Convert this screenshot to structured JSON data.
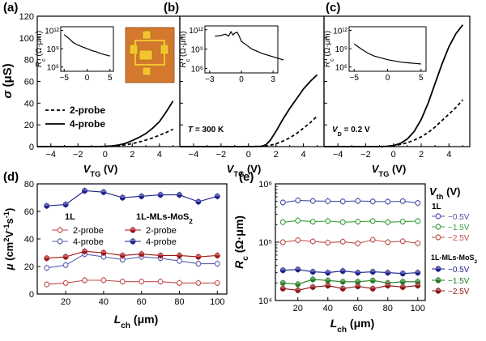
{
  "figure_labels": [
    "(a)",
    "(b)",
    "(c)",
    "(d)",
    "(e)"
  ],
  "chart_data": [
    {
      "id": "a",
      "type": "line",
      "panel_label": "(a)",
      "ylabel": "σ (μS)",
      "xlabel": "VTG (V)",
      "xlim": [
        -5,
        5.5
      ],
      "ylim": [
        0,
        120
      ],
      "xticks": [
        -4,
        -2,
        0,
        2,
        4
      ],
      "yticks": [
        0,
        20,
        40,
        60,
        80,
        100,
        120
      ],
      "legend": [
        "2-probe",
        "4-probe"
      ],
      "series": [
        {
          "name": "2-probe",
          "style": "dashed",
          "x": [
            -5,
            -4,
            -3,
            -2,
            -1,
            0,
            0.5,
            1,
            1.5,
            2,
            2.5,
            3,
            3.5,
            4,
            4.5,
            5
          ],
          "y": [
            0,
            0,
            0,
            0,
            0,
            0.1,
            0.3,
            0.8,
            1.6,
            2.8,
            4.2,
            6,
            8,
            10.5,
            13,
            16
          ]
        },
        {
          "name": "4-probe",
          "style": "solid",
          "x": [
            -5,
            -4,
            -3,
            -2,
            -1,
            0,
            0.5,
            1,
            1.5,
            2,
            2.5,
            3,
            3.5,
            4,
            4.5,
            5
          ],
          "y": [
            0,
            0,
            0,
            0,
            0,
            0.2,
            0.6,
            1.5,
            3,
            5.5,
            8.5,
            12,
            17,
            23,
            32,
            42
          ]
        }
      ],
      "inset": {
        "ylabel": "Rc (Ω·μm)",
        "ytick_labels": [
          "10^12",
          "10^9",
          "10^6"
        ],
        "xticks": [
          -5,
          0,
          5
        ],
        "x": [
          -5,
          -4,
          -3,
          -2,
          -1,
          0,
          1,
          2,
          3,
          4,
          5
        ],
        "log_y": [
          11.3,
          10.7,
          10.0,
          9.6,
          9.3,
          9.0,
          8.7,
          8.5,
          8.2,
          8.0,
          7.8
        ]
      },
      "has_device_image": true
    },
    {
      "id": "b",
      "type": "line",
      "panel_label": "(b)",
      "xlabel": "VTG (V)",
      "annotation": "T = 300 K",
      "xlim": [
        -5,
        5.5
      ],
      "ylim": [
        0,
        120
      ],
      "xticks": [
        -4,
        -2,
        0,
        2,
        4
      ],
      "series": [
        {
          "name": "2-probe",
          "style": "dashed",
          "x": [
            -5,
            -3,
            -1,
            0,
            1,
            1.5,
            2,
            2.5,
            3,
            3.5,
            4,
            4.5,
            5
          ],
          "y": [
            0,
            0,
            0,
            0,
            0.2,
            1,
            2.5,
            5,
            8,
            12,
            17,
            22,
            28
          ]
        },
        {
          "name": "4-probe",
          "style": "solid",
          "x": [
            -5,
            -3,
            -1,
            0,
            1,
            1.3,
            1.6,
            2,
            2.5,
            3,
            3.5,
            4,
            4.5,
            5
          ],
          "y": [
            0,
            0,
            0,
            0,
            0.3,
            2,
            6,
            14,
            25,
            35,
            44,
            53,
            60,
            66
          ]
        }
      ],
      "inset": {
        "ylabel": "Rc (Ω·μm)",
        "ytick_labels": [
          "10^12",
          "10^9",
          "10^6"
        ],
        "xticks": [
          -3,
          0,
          3
        ],
        "x": [
          -2.5,
          -2,
          -1.5,
          -1.2,
          -1,
          -0.8,
          -0.6,
          -0.4,
          -0.2,
          0,
          0.5,
          1,
          2,
          3,
          4
        ],
        "log_y": [
          11.0,
          11.1,
          11.3,
          11.0,
          11.7,
          11.2,
          11.5,
          11.6,
          11.0,
          10.2,
          9.6,
          9.0,
          8.3,
          7.8,
          7.3
        ]
      }
    },
    {
      "id": "c",
      "type": "line",
      "panel_label": "(c)",
      "xlabel": "VTG (V)",
      "annotation": "VD = 0.2 V",
      "xlim": [
        -5,
        5.5
      ],
      "ylim": [
        0,
        120
      ],
      "xticks": [
        -4,
        -2,
        0,
        2,
        4
      ],
      "series": [
        {
          "name": "2-probe",
          "style": "dashed",
          "x": [
            -5,
            -3,
            -1,
            -0.5,
            0,
            0.5,
            1,
            1.5,
            2,
            2.5,
            3,
            3.5,
            4,
            4.5,
            5
          ],
          "y": [
            0,
            0,
            0,
            0.2,
            0.8,
            2,
            3.5,
            6,
            9,
            13,
            18,
            24,
            30,
            36,
            43
          ]
        },
        {
          "name": "4-probe",
          "style": "solid",
          "x": [
            -5,
            -3,
            -1,
            -0.5,
            0,
            0.5,
            1,
            1.5,
            2,
            2.5,
            3,
            3.5,
            4,
            4.5,
            5
          ],
          "y": [
            0,
            0,
            0,
            0.3,
            1,
            3,
            7,
            14,
            25,
            40,
            58,
            76,
            92,
            104,
            112
          ]
        }
      ],
      "inset": {
        "ylabel": "Rc (Ω·μm)",
        "ytick_labels": [
          "10^12",
          "10^9",
          "10^6"
        ],
        "xticks": [
          -5,
          0,
          5
        ],
        "x": [
          -5,
          -4,
          -3,
          -2,
          -1,
          0,
          1,
          2,
          3,
          4,
          5
        ],
        "log_y": [
          9.8,
          9.0,
          8.3,
          7.8,
          7.5,
          7.2,
          7.0,
          6.8,
          6.7,
          6.6,
          6.5
        ]
      }
    },
    {
      "id": "d",
      "type": "scatter",
      "panel_label": "(d)",
      "ylabel": "μ (cm2V-1s-1)",
      "xlabel": "Lch (μm)",
      "xlim": [
        5,
        105
      ],
      "ylim": [
        0,
        80
      ],
      "xticks": [
        20,
        40,
        60,
        80,
        100
      ],
      "yticks": [
        0,
        20,
        40,
        60,
        80
      ],
      "legend_titles": [
        "1L",
        "1L-MLs-MoS2"
      ],
      "legend": [
        "2-probe",
        "4-probe",
        "2-probe",
        "4-probe"
      ],
      "x": [
        10,
        20,
        30,
        40,
        50,
        60,
        70,
        80,
        90,
        100
      ],
      "series": [
        {
          "name": "1L 2-probe",
          "color": "#c0504d",
          "filled": false,
          "values": [
            7,
            8,
            10,
            10,
            9,
            9,
            9,
            8,
            8,
            8
          ]
        },
        {
          "name": "1L 4-probe",
          "color": "#5a5fb0",
          "filled": false,
          "values": [
            19,
            21,
            29,
            27,
            25,
            27,
            26,
            24,
            22,
            22
          ]
        },
        {
          "name": "1L-MLs-MoS2 2-probe",
          "color": "#a01414",
          "filled": true,
          "values": [
            26,
            27,
            31,
            30,
            28,
            29,
            28,
            28,
            27,
            28
          ]
        },
        {
          "name": "1L-MLs-MoS2 4-probe",
          "color": "#1a1f8a",
          "filled": true,
          "values": [
            64,
            65,
            75,
            74,
            70,
            71,
            72,
            72,
            67,
            71
          ]
        }
      ]
    },
    {
      "id": "e",
      "type": "scatter",
      "panel_label": "(e)",
      "ylabel": "Rc (Ω·μm)",
      "xlabel": "Lch (μm)",
      "xlim": [
        5,
        105
      ],
      "ylim_log": [
        4,
        6
      ],
      "xticks": [
        20,
        40,
        60,
        80,
        100
      ],
      "ytick_exponents": [
        4,
        5,
        6
      ],
      "legend_header": "Vth (V)",
      "legend_titles": [
        "1L",
        "1L-MLs-MoS2"
      ],
      "legend": [
        "-0.5V",
        "-1.5V",
        "-2.5V",
        "-0.5V",
        "-1.5V",
        "-2.5V"
      ],
      "x": [
        10,
        20,
        30,
        40,
        50,
        60,
        70,
        80,
        90,
        100
      ],
      "series": [
        {
          "name": "1L -0.5V",
          "color": "#4b4fa8",
          "filled": false,
          "values": [
            480000,
            520000,
            510000,
            505000,
            500000,
            510000,
            500000,
            495000,
            505000,
            470000
          ]
        },
        {
          "name": "1L -1.5V",
          "color": "#3a9e3a",
          "filled": false,
          "values": [
            220000,
            235000,
            225000,
            230000,
            220000,
            225000,
            230000,
            220000,
            225000,
            230000
          ]
        },
        {
          "name": "1L -2.5V",
          "color": "#c0504d",
          "filled": false,
          "values": [
            100000,
            108000,
            103000,
            98000,
            102000,
            95000,
            110000,
            100000,
            104000,
            96000
          ]
        },
        {
          "name": "1L-MLs-MoS2 -0.5V",
          "color": "#1a1f8a",
          "filled": true,
          "values": [
            33000,
            34000,
            31000,
            30000,
            32000,
            30000,
            31000,
            30000,
            29000,
            30000
          ]
        },
        {
          "name": "1L-MLs-MoS2 -1.5V",
          "color": "#1f7a1f",
          "filled": true,
          "values": [
            20000,
            19000,
            23000,
            22000,
            21000,
            21000,
            22000,
            20000,
            21000,
            21000
          ]
        },
        {
          "name": "1L-MLs-MoS2 -2.5V",
          "color": "#8b1010",
          "filled": true,
          "values": [
            16000,
            15000,
            17000,
            18000,
            16000,
            17500,
            16000,
            18000,
            17000,
            18000
          ]
        }
      ]
    }
  ]
}
